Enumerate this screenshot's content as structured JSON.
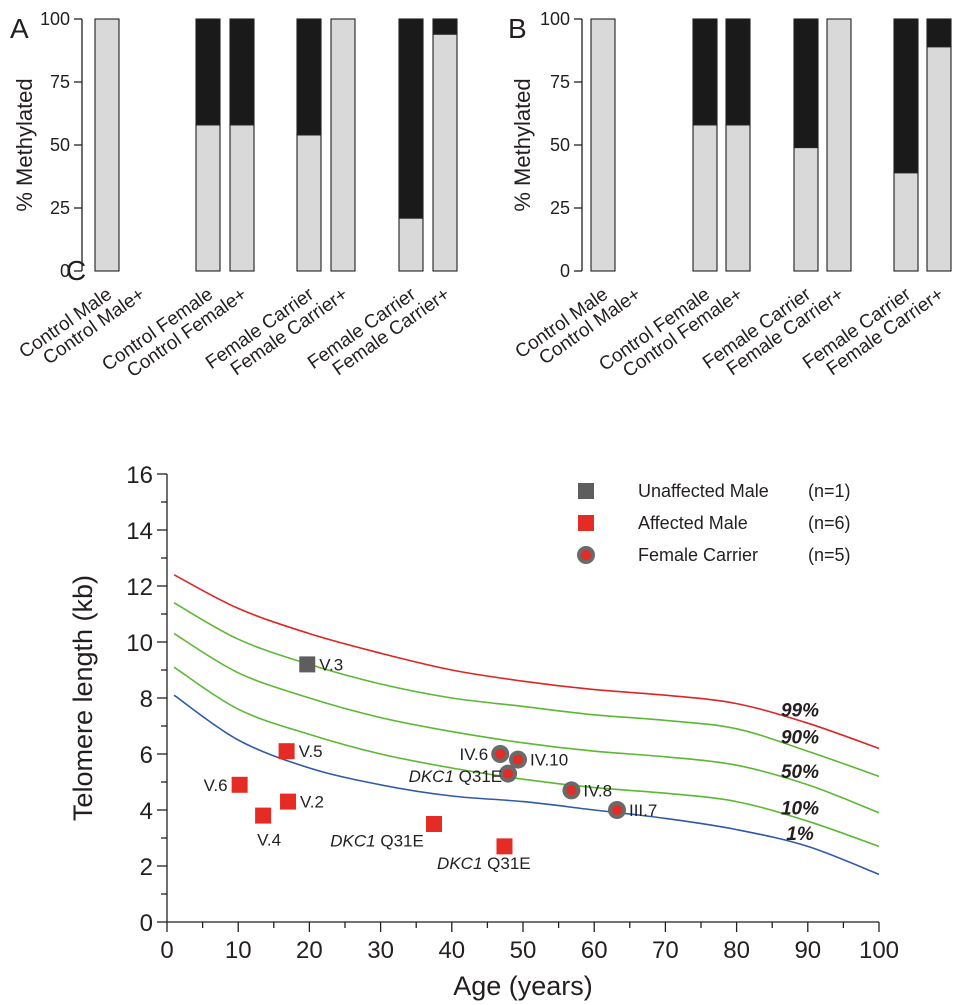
{
  "colors": {
    "unmethylated_fill": "#d9d9d9",
    "methylated_fill": "#1a1a1a",
    "curve_99": "#dc2626",
    "curve_90": "#5cb832",
    "curve_50": "#5cb832",
    "curve_10": "#5cb832",
    "curve_1": "#2e5aa8",
    "unaffected_male": "#5e5e5e",
    "affected_male": "#e42b24",
    "female_carrier_ring": "#6a6a6a",
    "female_carrier_core": "#e42b24"
  },
  "chart_data": [
    {
      "panel": "A",
      "type": "bar",
      "stacked": true,
      "ylabel": "% Methylated",
      "ylim": [
        0,
        100
      ],
      "yticks": [
        "0",
        "25",
        "50",
        "75",
        "100"
      ],
      "categories": [
        "Control Male",
        "Control Male+",
        "Control Female",
        "Control Female+",
        "Female Carrier",
        "Female Carrier+",
        "Female Carrier",
        "Female Carrier+"
      ],
      "groups": [
        [
          0,
          1
        ],
        [
          2,
          3
        ],
        [
          4,
          5
        ],
        [
          6,
          7
        ]
      ],
      "series": [
        {
          "role": "light",
          "values": [
            100,
            0,
            58,
            58,
            54,
            100,
            21,
            94
          ]
        },
        {
          "role": "dark",
          "values": [
            0,
            0,
            42,
            42,
            46,
            0,
            79,
            6
          ]
        }
      ]
    },
    {
      "panel": "B",
      "type": "bar",
      "stacked": true,
      "ylabel": "% Methylated",
      "ylim": [
        0,
        100
      ],
      "yticks": [
        "0",
        "25",
        "50",
        "75",
        "100"
      ],
      "categories": [
        "Control Male",
        "Control Male+",
        "Control Female",
        "Control Female+",
        "Female Carrier",
        "Female Carrier+",
        "Female Carrier",
        "Female Carrier+"
      ],
      "groups": [
        [
          0,
          1
        ],
        [
          2,
          3
        ],
        [
          4,
          5
        ],
        [
          6,
          7
        ]
      ],
      "series": [
        {
          "role": "light",
          "values": [
            100,
            0,
            58,
            58,
            49,
            100,
            39,
            89
          ]
        },
        {
          "role": "dark",
          "values": [
            0,
            0,
            42,
            42,
            51,
            0,
            61,
            11
          ]
        }
      ]
    },
    {
      "panel": "C",
      "type": "scatter",
      "xlabel": "Age (years)",
      "ylabel": "Telomere length (kb)",
      "xlim": [
        0,
        100
      ],
      "ylim": [
        0,
        16
      ],
      "xticks": [
        "0",
        "10",
        "20",
        "30",
        "40",
        "50",
        "60",
        "70",
        "80",
        "90",
        "100"
      ],
      "yticks": [
        "0",
        "2",
        "4",
        "6",
        "8",
        "10",
        "12",
        "14",
        "16"
      ],
      "legend": [
        {
          "key": "unaffected",
          "label": "Unaffected Male",
          "n": "(n=1)"
        },
        {
          "key": "affected",
          "label": "Affected Male",
          "n": "(n=6)"
        },
        {
          "key": "carrier",
          "label": "Female Carrier",
          "n": "(n=5)"
        }
      ],
      "percentile_curves": [
        {
          "label": "99%",
          "color_key": "curve_99",
          "x": [
            1,
            10,
            20,
            30,
            40,
            50,
            60,
            70,
            80,
            90,
            100
          ],
          "y": [
            12.4,
            11.2,
            10.3,
            9.6,
            9.0,
            8.6,
            8.3,
            8.1,
            7.8,
            7.1,
            6.2
          ]
        },
        {
          "label": "90%",
          "color_key": "curve_90",
          "x": [
            1,
            10,
            20,
            30,
            40,
            50,
            60,
            70,
            80,
            90,
            100
          ],
          "y": [
            11.4,
            10.1,
            9.2,
            8.5,
            8.0,
            7.7,
            7.4,
            7.2,
            6.9,
            6.1,
            5.2
          ]
        },
        {
          "label": "50%",
          "color_key": "curve_50",
          "x": [
            1,
            10,
            20,
            30,
            40,
            50,
            60,
            70,
            80,
            90,
            100
          ],
          "y": [
            10.3,
            8.9,
            8.0,
            7.3,
            6.8,
            6.4,
            6.1,
            5.9,
            5.6,
            4.9,
            3.9
          ]
        },
        {
          "label": "10%",
          "color_key": "curve_10",
          "x": [
            1,
            10,
            20,
            30,
            40,
            50,
            60,
            70,
            80,
            90,
            100
          ],
          "y": [
            9.1,
            7.6,
            6.7,
            6.0,
            5.5,
            5.1,
            4.8,
            4.6,
            4.3,
            3.6,
            2.7
          ]
        },
        {
          "label": "1%",
          "color_key": "curve_1",
          "x": [
            1,
            10,
            20,
            30,
            40,
            50,
            60,
            70,
            80,
            90,
            100
          ],
          "y": [
            8.1,
            6.5,
            5.5,
            4.9,
            4.5,
            4.3,
            4.0,
            3.7,
            3.3,
            2.7,
            1.7
          ]
        }
      ],
      "points": [
        {
          "kind": "unaffected",
          "x": 19.7,
          "y": 9.2,
          "label": "V.3",
          "label_pos": "right"
        },
        {
          "kind": "affected",
          "x": 16.8,
          "y": 6.1,
          "label": "V.5",
          "label_pos": "right"
        },
        {
          "kind": "affected",
          "x": 10.2,
          "y": 4.9,
          "label": "V.6",
          "label_pos": "left"
        },
        {
          "kind": "affected",
          "x": 13.5,
          "y": 3.8,
          "label": "V.4",
          "label_pos": "below"
        },
        {
          "kind": "affected",
          "x": 17.0,
          "y": 4.3,
          "label": "V.2",
          "label_pos": "right"
        },
        {
          "kind": "affected",
          "x": 37.5,
          "y": 3.5,
          "label": "",
          "label_pos": "none"
        },
        {
          "kind": "affected",
          "x": 47.4,
          "y": 2.7,
          "label": "",
          "label_pos": "none"
        },
        {
          "kind": "carrier",
          "x": 46.8,
          "y": 6.0,
          "label": "IV.6",
          "label_pos": "left"
        },
        {
          "kind": "carrier",
          "x": 49.3,
          "y": 5.8,
          "label": "IV.10",
          "label_pos": "right"
        },
        {
          "kind": "carrier",
          "x": 47.9,
          "y": 5.3,
          "label": "",
          "label_pos": "none"
        },
        {
          "kind": "carrier",
          "x": 56.8,
          "y": 4.7,
          "label": "IV.8",
          "label_pos": "right"
        },
        {
          "kind": "carrier",
          "x": 63.2,
          "y": 4.0,
          "label": "III.7",
          "label_pos": "right"
        }
      ],
      "mutation_annotations": [
        {
          "gene": "DKC1",
          "mutation": "Q31E",
          "x": 40.5,
          "y": 5.0
        },
        {
          "gene": "DKC1",
          "mutation": "Q31E",
          "x": 29.5,
          "y": 2.7
        },
        {
          "gene": "DKC1",
          "mutation": "Q31E",
          "x": 44.5,
          "y": 1.9
        }
      ]
    }
  ],
  "panels": {
    "a_letter": "A",
    "b_letter": "B",
    "c_letter": "C"
  }
}
